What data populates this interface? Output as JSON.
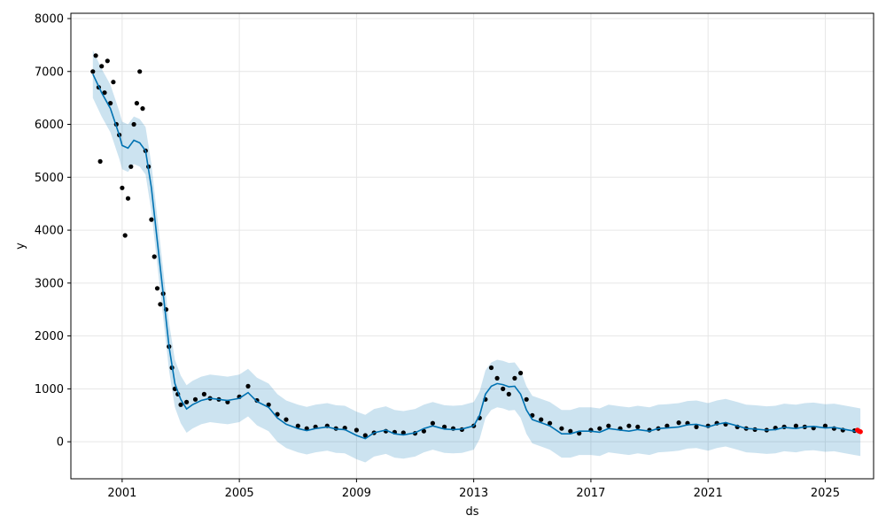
{
  "chart_data": {
    "type": "line",
    "xlabel": "ds",
    "ylabel": "y",
    "xlim": [
      1999.25,
      2026.65
    ],
    "ylim": [
      -700,
      8100
    ],
    "x_ticks": [
      2001,
      2005,
      2009,
      2013,
      2017,
      2021,
      2025
    ],
    "x_tick_labels": [
      "2001",
      "2005",
      "2009",
      "2013",
      "2017",
      "2021",
      "2025"
    ],
    "y_ticks": [
      0,
      1000,
      2000,
      3000,
      4000,
      5000,
      6000,
      7000,
      8000
    ],
    "y_tick_labels": [
      "0",
      "1000",
      "2000",
      "3000",
      "4000",
      "5000",
      "6000",
      "7000",
      "8000"
    ],
    "grid": true,
    "colors": {
      "observed": "#000000",
      "forecast": "#0072B2",
      "uncertainty": "#0072B2",
      "future_point": "#ff0000",
      "grid": "#e6e6e6"
    },
    "series": [
      {
        "kind": "observed_points",
        "x": [
          2000.0,
          2000.1,
          2000.2,
          2000.25,
          2000.3,
          2000.4,
          2000.5,
          2000.6,
          2000.7,
          2000.8,
          2000.9,
          2001.0,
          2001.1,
          2001.2,
          2001.3,
          2001.4,
          2001.5,
          2001.6,
          2001.7,
          2001.8,
          2001.9,
          2002.0,
          2002.1,
          2002.2,
          2002.3,
          2002.4,
          2002.5,
          2002.6,
          2002.7,
          2002.8,
          2002.9,
          2003.0,
          2003.2,
          2003.5,
          2003.8,
          2004.0,
          2004.3,
          2004.6,
          2005.0,
          2005.3,
          2005.6,
          2006.0,
          2006.3,
          2006.6,
          2007.0,
          2007.3,
          2007.6,
          2008.0,
          2008.3,
          2008.6,
          2009.0,
          2009.3,
          2009.6,
          2010.0,
          2010.3,
          2010.6,
          2011.0,
          2011.3,
          2011.6,
          2012.0,
          2012.3,
          2012.6,
          2013.0,
          2013.2,
          2013.4,
          2013.6,
          2013.8,
          2014.0,
          2014.2,
          2014.4,
          2014.6,
          2014.8,
          2015.0,
          2015.3,
          2015.6,
          2016.0,
          2016.3,
          2016.6,
          2017.0,
          2017.3,
          2017.6,
          2018.0,
          2018.3,
          2018.6,
          2019.0,
          2019.3,
          2019.6,
          2020.0,
          2020.3,
          2020.6,
          2021.0,
          2021.3,
          2021.6,
          2022.0,
          2022.3,
          2022.6,
          2023.0,
          2023.3,
          2023.6,
          2024.0,
          2024.3,
          2024.6,
          2025.0,
          2025.3,
          2025.6,
          2026.0
        ],
        "y": [
          7000,
          7300,
          6700,
          5300,
          7100,
          6600,
          7200,
          6400,
          6800,
          6000,
          5800,
          4800,
          3900,
          4600,
          5200,
          6000,
          6400,
          7000,
          6300,
          5500,
          5200,
          4200,
          3500,
          2900,
          2600,
          2800,
          2500,
          1800,
          1400,
          1000,
          900,
          700,
          750,
          800,
          900,
          820,
          800,
          750,
          850,
          1050,
          780,
          700,
          520,
          420,
          300,
          250,
          280,
          300,
          250,
          260,
          220,
          120,
          170,
          200,
          180,
          170,
          160,
          200,
          350,
          280,
          250,
          230,
          300,
          450,
          800,
          1400,
          1200,
          1000,
          900,
          1200,
          1300,
          800,
          500,
          420,
          350,
          250,
          200,
          160,
          220,
          250,
          300,
          250,
          300,
          280,
          220,
          250,
          300,
          360,
          350,
          280,
          300,
          350,
          330,
          280,
          250,
          230,
          220,
          260,
          280,
          300,
          280,
          260,
          300,
          250,
          220,
          210
        ]
      },
      {
        "kind": "forecast_line",
        "x": [
          2000.0,
          2000.3,
          2000.6,
          2000.9,
          2001.0,
          2001.2,
          2001.4,
          2001.6,
          2001.8,
          2002.0,
          2002.2,
          2002.4,
          2002.6,
          2002.8,
          2003.0,
          2003.2,
          2003.4,
          2003.7,
          2004.0,
          2004.3,
          2004.6,
          2005.0,
          2005.3,
          2005.6,
          2006.0,
          2006.3,
          2006.6,
          2007.0,
          2007.3,
          2007.6,
          2008.0,
          2008.3,
          2008.6,
          2009.0,
          2009.3,
          2009.6,
          2010.0,
          2010.3,
          2010.6,
          2011.0,
          2011.3,
          2011.6,
          2012.0,
          2012.3,
          2012.6,
          2013.0,
          2013.2,
          2013.4,
          2013.6,
          2013.8,
          2014.0,
          2014.2,
          2014.4,
          2014.6,
          2014.8,
          2015.0,
          2015.3,
          2015.6,
          2016.0,
          2016.3,
          2016.6,
          2017.0,
          2017.3,
          2017.6,
          2018.0,
          2018.3,
          2018.6,
          2019.0,
          2019.3,
          2019.6,
          2020.0,
          2020.3,
          2020.6,
          2021.0,
          2021.3,
          2021.6,
          2022.0,
          2022.3,
          2022.6,
          2023.0,
          2023.3,
          2023.6,
          2024.0,
          2024.3,
          2024.6,
          2025.0,
          2025.3,
          2025.6,
          2026.0,
          2026.2
        ],
        "y": [
          6950,
          6600,
          6300,
          5800,
          5600,
          5550,
          5700,
          5650,
          5500,
          4800,
          3800,
          2800,
          1800,
          1100,
          800,
          620,
          700,
          780,
          820,
          800,
          780,
          820,
          930,
          760,
          650,
          450,
          330,
          250,
          210,
          250,
          280,
          240,
          230,
          120,
          60,
          170,
          220,
          150,
          130,
          170,
          250,
          300,
          240,
          230,
          240,
          300,
          500,
          900,
          1050,
          1100,
          1080,
          1040,
          1050,
          900,
          600,
          420,
          360,
          300,
          150,
          150,
          200,
          200,
          180,
          250,
          220,
          200,
          230,
          200,
          250,
          260,
          280,
          320,
          330,
          280,
          330,
          360,
          300,
          250,
          240,
          220,
          230,
          270,
          250,
          280,
          290,
          260,
          270,
          240,
          200,
          180
        ],
        "lower": [
          6500,
          6150,
          5850,
          5350,
          5150,
          5100,
          5250,
          5200,
          5050,
          4350,
          3350,
          2350,
          1350,
          650,
          350,
          170,
          250,
          330,
          370,
          350,
          330,
          370,
          480,
          310,
          200,
          0,
          -120,
          -200,
          -240,
          -200,
          -170,
          -210,
          -220,
          -330,
          -390,
          -280,
          -230,
          -300,
          -320,
          -280,
          -200,
          -150,
          -210,
          -220,
          -210,
          -150,
          50,
          450,
          600,
          650,
          630,
          590,
          600,
          450,
          150,
          -30,
          -90,
          -150,
          -300,
          -300,
          -250,
          -250,
          -270,
          -200,
          -230,
          -250,
          -220,
          -250,
          -200,
          -190,
          -170,
          -130,
          -120,
          -170,
          -120,
          -90,
          -150,
          -200,
          -210,
          -230,
          -220,
          -180,
          -200,
          -170,
          -160,
          -190,
          -180,
          -210,
          -250,
          -270
        ],
        "upper": [
          7400,
          7050,
          6750,
          6250,
          6050,
          6000,
          6150,
          6100,
          5950,
          5250,
          4250,
          3250,
          2250,
          1550,
          1250,
          1070,
          1150,
          1230,
          1270,
          1250,
          1230,
          1270,
          1380,
          1210,
          1100,
          900,
          780,
          700,
          660,
          700,
          730,
          690,
          680,
          570,
          510,
          620,
          670,
          600,
          580,
          620,
          700,
          750,
          690,
          680,
          690,
          750,
          950,
          1350,
          1500,
          1550,
          1530,
          1490,
          1500,
          1350,
          1050,
          870,
          810,
          750,
          600,
          600,
          650,
          650,
          630,
          700,
          670,
          650,
          680,
          650,
          700,
          710,
          730,
          770,
          780,
          730,
          780,
          810,
          750,
          700,
          690,
          670,
          680,
          720,
          700,
          730,
          740,
          710,
          720,
          690,
          650,
          630
        ]
      },
      {
        "kind": "future_points",
        "x": [
          2026.1,
          2026.15,
          2026.2
        ],
        "y": [
          220,
          200,
          190
        ]
      }
    ]
  }
}
